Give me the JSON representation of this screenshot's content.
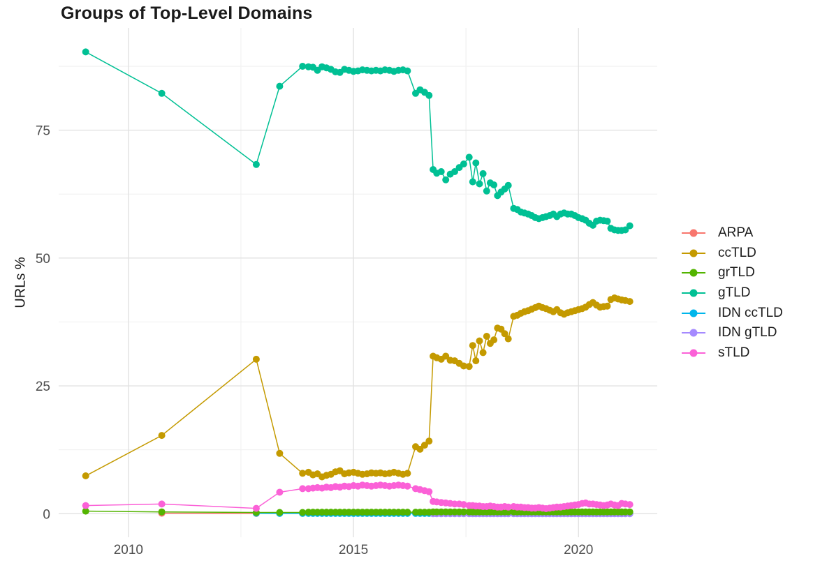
{
  "chart_data": {
    "type": "line",
    "title": "Groups of Top-Level Domains",
    "xlabel": "",
    "ylabel": "URLs %",
    "x_ticks": [
      2010,
      2015,
      2020
    ],
    "x_minor_ticks": [
      2012.5,
      2017.5
    ],
    "y_ticks": [
      0,
      25,
      50,
      75
    ],
    "y_minor_ticks": [
      12.5,
      37.5,
      62.5,
      87.5
    ],
    "xlim": [
      2008.45,
      2021.75
    ],
    "ylim": [
      -4.6,
      95
    ],
    "grid": true,
    "legend_position": "right",
    "background_color": "#FFFFFF",
    "grid_major_color": "#E2E2E2",
    "grid_minor_color": "#F1F1F1",
    "tick_label_color": "#4d4d4d",
    "draw_order": [
      "ARPA",
      "IDN ccTLD",
      "IDN gTLD",
      "grTLD",
      "sTLD",
      "ccTLD",
      "gTLD"
    ],
    "x": [
      2009.05,
      2010.74,
      2012.84,
      2013.36,
      2013.87,
      2014.0,
      2014.1,
      2014.2,
      2014.3,
      2014.4,
      2014.5,
      2014.6,
      2014.7,
      2014.8,
      2014.9,
      2015.0,
      2015.1,
      2015.2,
      2015.3,
      2015.4,
      2015.5,
      2015.6,
      2015.7,
      2015.8,
      2015.9,
      2016.0,
      2016.1,
      2016.2,
      2016.38,
      2016.48,
      2016.58,
      2016.68,
      2016.77,
      2016.85,
      2016.95,
      2017.05,
      2017.15,
      2017.25,
      2017.35,
      2017.45,
      2017.57,
      2017.65,
      2017.72,
      2017.8,
      2017.88,
      2017.96,
      2018.04,
      2018.12,
      2018.2,
      2018.28,
      2018.36,
      2018.44,
      2018.56,
      2018.64,
      2018.72,
      2018.8,
      2018.88,
      2018.96,
      2019.04,
      2019.12,
      2019.2,
      2019.28,
      2019.36,
      2019.44,
      2019.52,
      2019.6,
      2019.68,
      2019.76,
      2019.84,
      2019.92,
      2020.0,
      2020.08,
      2020.16,
      2020.24,
      2020.32,
      2020.4,
      2020.48,
      2020.56,
      2020.64,
      2020.72,
      2020.8,
      2020.88,
      2020.96,
      2021.04,
      2021.14
    ],
    "series": [
      {
        "name": "ARPA",
        "color": "#F8766D",
        "values": [
          null,
          0.1,
          0.05,
          null,
          null,
          null,
          null,
          null,
          null,
          null,
          null,
          null,
          null,
          null,
          null,
          null,
          null,
          null,
          null,
          null,
          null,
          null,
          null,
          null,
          null,
          null,
          null,
          null,
          null,
          null,
          null,
          null,
          null,
          null,
          null,
          null,
          null,
          null,
          null,
          null,
          null,
          null,
          null,
          null,
          null,
          null,
          null,
          null,
          null,
          null,
          null,
          null,
          null,
          null,
          null,
          null,
          null,
          null,
          null,
          null,
          null,
          null,
          null,
          null,
          null,
          null,
          null,
          null,
          null,
          null,
          null,
          null,
          null,
          null,
          null,
          null,
          null,
          null,
          null,
          null,
          null,
          null,
          null,
          null,
          null
        ]
      },
      {
        "name": "ccTLD",
        "color": "#C49A00",
        "values": [
          7.4,
          15.3,
          30.2,
          11.8,
          7.9,
          8.1,
          7.6,
          7.8,
          7.2,
          7.5,
          7.7,
          8.2,
          8.4,
          7.8,
          8.0,
          8.1,
          7.9,
          7.7,
          7.8,
          8.0,
          7.9,
          8.0,
          7.8,
          7.9,
          8.1,
          7.9,
          7.7,
          7.9,
          13.1,
          12.6,
          13.4,
          14.2,
          30.8,
          30.5,
          30.2,
          30.8,
          30.0,
          29.9,
          29.4,
          28.9,
          28.8,
          32.9,
          29.9,
          33.8,
          31.5,
          34.7,
          33.3,
          34.0,
          36.3,
          36.1,
          35.2,
          34.2,
          38.6,
          38.8,
          39.2,
          39.5,
          39.7,
          40.0,
          40.3,
          40.6,
          40.3,
          40.1,
          39.8,
          39.5,
          39.9,
          39.3,
          39.0,
          39.3,
          39.5,
          39.7,
          39.9,
          40.1,
          40.4,
          40.9,
          41.3,
          40.8,
          40.4,
          40.5,
          40.6,
          41.9,
          42.2,
          42.0,
          41.8,
          41.7,
          41.5
        ]
      },
      {
        "name": "grTLD",
        "color": "#53B400",
        "values": [
          0.5,
          0.35,
          0.25,
          0.25,
          0.25,
          0.3,
          0.3,
          0.3,
          0.3,
          0.3,
          0.3,
          0.3,
          0.3,
          0.3,
          0.3,
          0.3,
          0.3,
          0.3,
          0.3,
          0.3,
          0.3,
          0.3,
          0.3,
          0.3,
          0.3,
          0.3,
          0.3,
          0.3,
          0.3,
          0.3,
          0.3,
          0.3,
          0.35,
          0.35,
          0.35,
          0.35,
          0.35,
          0.35,
          0.35,
          0.35,
          0.35,
          0.35,
          0.35,
          0.35,
          0.35,
          0.35,
          0.35,
          0.35,
          0.35,
          0.35,
          0.35,
          0.35,
          0.35,
          0.35,
          0.35,
          0.35,
          0.35,
          0.35,
          0.35,
          0.35,
          0.35,
          0.35,
          0.35,
          0.35,
          0.35,
          0.35,
          0.35,
          0.35,
          0.35,
          0.35,
          0.35,
          0.35,
          0.35,
          0.35,
          0.35,
          0.35,
          0.35,
          0.35,
          0.35,
          0.35,
          0.35,
          0.35,
          0.35,
          0.35,
          0.35
        ]
      },
      {
        "name": "gTLD",
        "color": "#00C094",
        "values": [
          90.3,
          82.2,
          68.3,
          83.6,
          87.5,
          87.4,
          87.3,
          86.7,
          87.4,
          87.2,
          86.9,
          86.4,
          86.3,
          86.9,
          86.7,
          86.5,
          86.6,
          86.8,
          86.7,
          86.6,
          86.7,
          86.6,
          86.8,
          86.7,
          86.5,
          86.7,
          86.8,
          86.6,
          82.2,
          82.9,
          82.4,
          81.8,
          67.3,
          66.6,
          66.9,
          65.3,
          66.4,
          66.9,
          67.7,
          68.4,
          69.7,
          64.9,
          68.6,
          64.5,
          66.5,
          63.1,
          64.7,
          64.3,
          62.2,
          62.9,
          63.5,
          64.2,
          59.7,
          59.5,
          59.0,
          58.8,
          58.6,
          58.3,
          57.9,
          57.7,
          57.9,
          58.1,
          58.3,
          58.6,
          58.1,
          58.6,
          58.8,
          58.6,
          58.6,
          58.3,
          57.9,
          57.7,
          57.4,
          56.8,
          56.4,
          57.2,
          57.4,
          57.3,
          57.2,
          55.8,
          55.5,
          55.4,
          55.4,
          55.5,
          56.3
        ]
      },
      {
        "name": "IDN ccTLD",
        "color": "#00B6EB",
        "values": [
          null,
          null,
          0.1,
          0.05,
          0.05,
          0.05,
          0.05,
          0.05,
          0.05,
          0.05,
          0.05,
          0.05,
          0.05,
          0.05,
          0.05,
          0.05,
          0.05,
          0.05,
          0.05,
          0.05,
          0.05,
          0.05,
          0.05,
          0.05,
          0.05,
          0.05,
          0.05,
          0.05,
          0.05,
          0.05,
          0.05,
          0.05,
          0.05,
          0.05,
          0.05,
          0.05,
          0.05,
          0.05,
          0.05,
          0.05,
          0.05,
          0.05,
          0.05,
          0.05,
          0.05,
          0.05,
          0.05,
          0.05,
          0.05,
          0.05,
          0.05,
          0.05,
          0.05,
          0.05,
          0.05,
          0.05,
          0.05,
          0.05,
          0.05,
          0.05,
          0.05,
          0.05,
          0.05,
          0.05,
          0.05,
          0.05,
          0.05,
          0.05,
          0.05,
          0.05,
          0.05,
          0.05,
          0.05,
          0.05,
          0.05,
          0.05,
          0.05,
          0.05,
          0.05,
          0.05,
          0.05,
          0.05,
          0.05,
          0.05,
          0.05
        ]
      },
      {
        "name": "IDN gTLD",
        "color": "#A58AFF",
        "values": [
          null,
          null,
          null,
          null,
          null,
          null,
          null,
          null,
          null,
          null,
          null,
          null,
          null,
          null,
          null,
          null,
          null,
          null,
          null,
          null,
          null,
          null,
          null,
          null,
          null,
          null,
          null,
          null,
          null,
          null,
          null,
          null,
          0.0,
          0.0,
          0.0,
          0.0,
          0.0,
          0.0,
          0.0,
          0.0,
          0.0,
          0.0,
          0.0,
          0.0,
          0.0,
          0.0,
          0.0,
          0.0,
          0.0,
          0.0,
          0.0,
          0.0,
          0.0,
          0.0,
          0.0,
          0.0,
          0.0,
          0.0,
          0.0,
          0.0,
          0.0,
          0.0,
          0.0,
          0.0,
          0.0,
          0.0,
          0.0,
          0.0,
          0.0,
          0.0,
          0.0,
          0.0,
          0.0,
          0.0,
          0.0,
          0.0,
          0.0,
          0.0,
          0.0,
          0.0,
          0.0,
          0.0,
          0.0,
          0.0,
          0.0
        ]
      },
      {
        "name": "sTLD",
        "color": "#FB61D7",
        "values": [
          1.6,
          1.9,
          1.05,
          4.2,
          4.9,
          4.9,
          5.0,
          5.1,
          5.0,
          5.2,
          5.1,
          5.3,
          5.2,
          5.4,
          5.3,
          5.5,
          5.4,
          5.6,
          5.5,
          5.4,
          5.5,
          5.6,
          5.5,
          5.4,
          5.5,
          5.6,
          5.5,
          5.4,
          4.9,
          4.7,
          4.5,
          4.3,
          2.4,
          2.3,
          2.2,
          2.1,
          2.0,
          1.9,
          1.9,
          1.8,
          1.6,
          1.6,
          1.5,
          1.5,
          1.4,
          1.4,
          1.5,
          1.4,
          1.3,
          1.3,
          1.4,
          1.3,
          1.4,
          1.3,
          1.3,
          1.2,
          1.2,
          1.1,
          1.1,
          1.2,
          1.1,
          1.0,
          1.1,
          1.2,
          1.3,
          1.3,
          1.4,
          1.5,
          1.6,
          1.7,
          1.8,
          2.0,
          2.1,
          1.9,
          1.9,
          1.8,
          1.7,
          1.6,
          1.7,
          1.9,
          1.7,
          1.6,
          2.0,
          1.9,
          1.8
        ]
      }
    ]
  }
}
